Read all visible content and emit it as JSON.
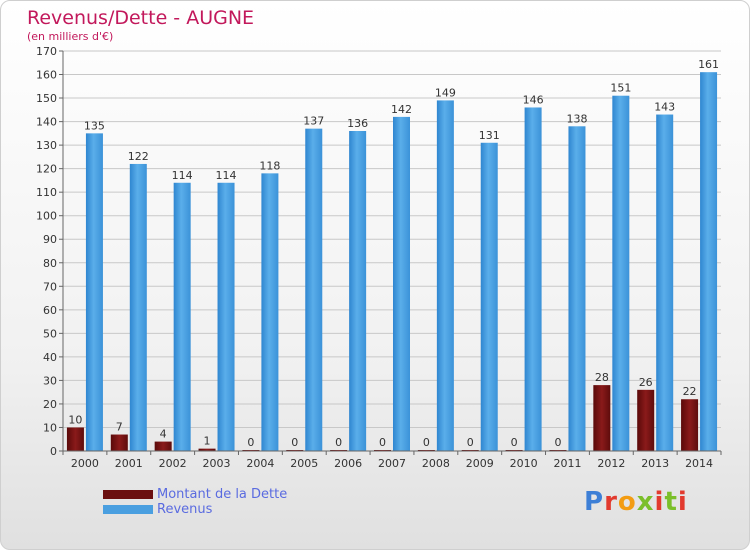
{
  "title": "Revenus/Dette - AUGNE",
  "subtitle": "(en milliers d'€)",
  "logo": {
    "text": "Proxiti",
    "letters": [
      "P",
      "r",
      "o",
      "x",
      "i",
      "t",
      "i"
    ],
    "colors": [
      "#3d7fd6",
      "#e23a2e",
      "#f39c12",
      "#7bbf2a",
      "#e23a2e",
      "#7bbf2a",
      "#e23a2e"
    ]
  },
  "chart_data": {
    "type": "bar",
    "title": "Revenus/Dette - AUGNE",
    "subtitle": "(en milliers d'€)",
    "categories": [
      "2000",
      "2001",
      "2002",
      "2003",
      "2004",
      "2005",
      "2006",
      "2007",
      "2008",
      "2009",
      "2010",
      "2011",
      "2012",
      "2013",
      "2014"
    ],
    "series": [
      {
        "name": "Montant de la Dette",
        "color": "#6b0f0f",
        "values": [
          10,
          7,
          4,
          1,
          0,
          0,
          0,
          0,
          0,
          0,
          0,
          0,
          28,
          26,
          22
        ]
      },
      {
        "name": "Revenus",
        "color": "#4a9fe0",
        "values": [
          135,
          122,
          114,
          114,
          118,
          137,
          136,
          142,
          149,
          131,
          146,
          138,
          151,
          143,
          161
        ]
      }
    ],
    "ylim": [
      0,
      170
    ],
    "ytick_step": 10,
    "grid": true,
    "legend": "bottom-left"
  }
}
